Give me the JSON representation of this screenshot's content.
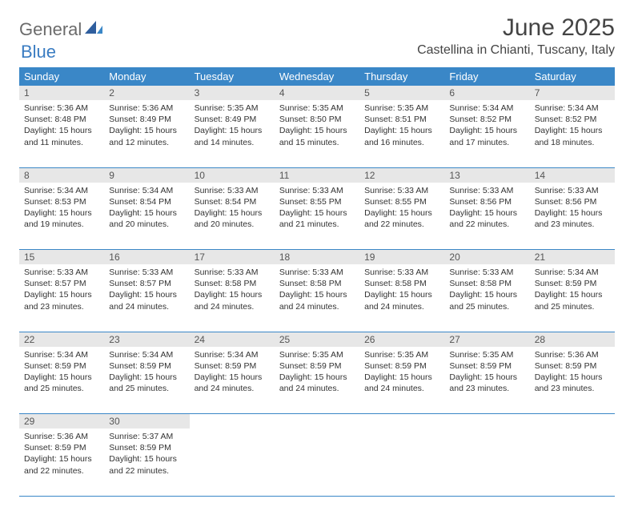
{
  "brand": {
    "part1": "General",
    "part2": "Blue"
  },
  "title": "June 2025",
  "location": "Castellina in Chianti, Tuscany, Italy",
  "colors": {
    "header_bg": "#3a87c7",
    "header_text": "#ffffff",
    "daynum_bg": "#e7e7e7",
    "border": "#3a87c7",
    "logo_gray": "#6b6b6b",
    "logo_blue": "#3a7cc2"
  },
  "weekdays": [
    "Sunday",
    "Monday",
    "Tuesday",
    "Wednesday",
    "Thursday",
    "Friday",
    "Saturday"
  ],
  "weeks": [
    [
      {
        "n": "1",
        "sr": "5:36 AM",
        "ss": "8:48 PM",
        "dl": "15 hours and 11 minutes."
      },
      {
        "n": "2",
        "sr": "5:36 AM",
        "ss": "8:49 PM",
        "dl": "15 hours and 12 minutes."
      },
      {
        "n": "3",
        "sr": "5:35 AM",
        "ss": "8:49 PM",
        "dl": "15 hours and 14 minutes."
      },
      {
        "n": "4",
        "sr": "5:35 AM",
        "ss": "8:50 PM",
        "dl": "15 hours and 15 minutes."
      },
      {
        "n": "5",
        "sr": "5:35 AM",
        "ss": "8:51 PM",
        "dl": "15 hours and 16 minutes."
      },
      {
        "n": "6",
        "sr": "5:34 AM",
        "ss": "8:52 PM",
        "dl": "15 hours and 17 minutes."
      },
      {
        "n": "7",
        "sr": "5:34 AM",
        "ss": "8:52 PM",
        "dl": "15 hours and 18 minutes."
      }
    ],
    [
      {
        "n": "8",
        "sr": "5:34 AM",
        "ss": "8:53 PM",
        "dl": "15 hours and 19 minutes."
      },
      {
        "n": "9",
        "sr": "5:34 AM",
        "ss": "8:54 PM",
        "dl": "15 hours and 20 minutes."
      },
      {
        "n": "10",
        "sr": "5:33 AM",
        "ss": "8:54 PM",
        "dl": "15 hours and 20 minutes."
      },
      {
        "n": "11",
        "sr": "5:33 AM",
        "ss": "8:55 PM",
        "dl": "15 hours and 21 minutes."
      },
      {
        "n": "12",
        "sr": "5:33 AM",
        "ss": "8:55 PM",
        "dl": "15 hours and 22 minutes."
      },
      {
        "n": "13",
        "sr": "5:33 AM",
        "ss": "8:56 PM",
        "dl": "15 hours and 22 minutes."
      },
      {
        "n": "14",
        "sr": "5:33 AM",
        "ss": "8:56 PM",
        "dl": "15 hours and 23 minutes."
      }
    ],
    [
      {
        "n": "15",
        "sr": "5:33 AM",
        "ss": "8:57 PM",
        "dl": "15 hours and 23 minutes."
      },
      {
        "n": "16",
        "sr": "5:33 AM",
        "ss": "8:57 PM",
        "dl": "15 hours and 24 minutes."
      },
      {
        "n": "17",
        "sr": "5:33 AM",
        "ss": "8:58 PM",
        "dl": "15 hours and 24 minutes."
      },
      {
        "n": "18",
        "sr": "5:33 AM",
        "ss": "8:58 PM",
        "dl": "15 hours and 24 minutes."
      },
      {
        "n": "19",
        "sr": "5:33 AM",
        "ss": "8:58 PM",
        "dl": "15 hours and 24 minutes."
      },
      {
        "n": "20",
        "sr": "5:33 AM",
        "ss": "8:58 PM",
        "dl": "15 hours and 25 minutes."
      },
      {
        "n": "21",
        "sr": "5:34 AM",
        "ss": "8:59 PM",
        "dl": "15 hours and 25 minutes."
      }
    ],
    [
      {
        "n": "22",
        "sr": "5:34 AM",
        "ss": "8:59 PM",
        "dl": "15 hours and 25 minutes."
      },
      {
        "n": "23",
        "sr": "5:34 AM",
        "ss": "8:59 PM",
        "dl": "15 hours and 25 minutes."
      },
      {
        "n": "24",
        "sr": "5:34 AM",
        "ss": "8:59 PM",
        "dl": "15 hours and 24 minutes."
      },
      {
        "n": "25",
        "sr": "5:35 AM",
        "ss": "8:59 PM",
        "dl": "15 hours and 24 minutes."
      },
      {
        "n": "26",
        "sr": "5:35 AM",
        "ss": "8:59 PM",
        "dl": "15 hours and 24 minutes."
      },
      {
        "n": "27",
        "sr": "5:35 AM",
        "ss": "8:59 PM",
        "dl": "15 hours and 23 minutes."
      },
      {
        "n": "28",
        "sr": "5:36 AM",
        "ss": "8:59 PM",
        "dl": "15 hours and 23 minutes."
      }
    ],
    [
      {
        "n": "29",
        "sr": "5:36 AM",
        "ss": "8:59 PM",
        "dl": "15 hours and 22 minutes."
      },
      {
        "n": "30",
        "sr": "5:37 AM",
        "ss": "8:59 PM",
        "dl": "15 hours and 22 minutes."
      },
      null,
      null,
      null,
      null,
      null
    ]
  ],
  "labels": {
    "sunrise": "Sunrise:",
    "sunset": "Sunset:",
    "daylight": "Daylight:"
  }
}
